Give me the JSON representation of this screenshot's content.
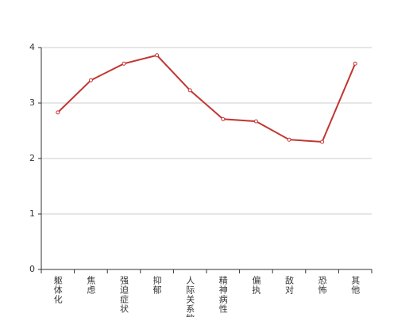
{
  "chart_data": {
    "type": "line",
    "categories": [
      "躯体化",
      "焦虑",
      "强迫症状",
      "抑郁",
      "人际关系敏感",
      "精神病性",
      "偏执",
      "敌对",
      "恐怖",
      "其他"
    ],
    "values": [
      2.83,
      3.41,
      3.71,
      3.86,
      3.23,
      2.71,
      2.67,
      2.34,
      2.3,
      3.71
    ],
    "color": "#c23531",
    "ylim": [
      0,
      4
    ],
    "yticks": [
      0,
      1,
      2,
      3,
      4
    ],
    "grid": true
  }
}
